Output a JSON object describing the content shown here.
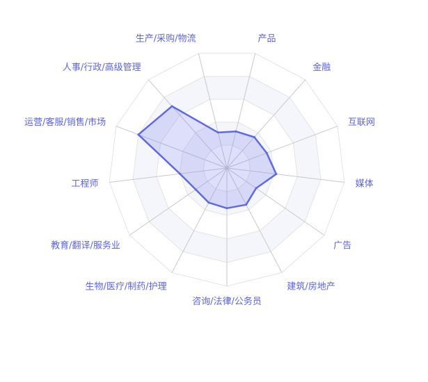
{
  "chart_data": {
    "type": "radar",
    "indicators": [
      "产品",
      "金融",
      "互联网",
      "媒体",
      "广告",
      "建筑/房地产",
      "咨询/法律/公务员",
      "生物/医疗/制药/护理",
      "教育/翻译/服务业",
      "工程师",
      "运营/客服/销售/市场",
      "人事/行政/高级管理",
      "生产/采购/物流"
    ],
    "max": 100,
    "series": [
      {
        "values": [
          32,
          35,
          36,
          42,
          30,
          35,
          34,
          33,
          32,
          40,
          80,
          70,
          31
        ]
      }
    ],
    "split_number": 5,
    "colors": {
      "label": "#5b64e6",
      "area_fill": "rgba(122,128,234,0.25)",
      "line": "#5f69e4",
      "split_area_odd": "#f5f6fb",
      "split_area_even": "#ffffff",
      "axis_line": "#c8c8c8",
      "split_line": "#e3e3e3"
    }
  }
}
